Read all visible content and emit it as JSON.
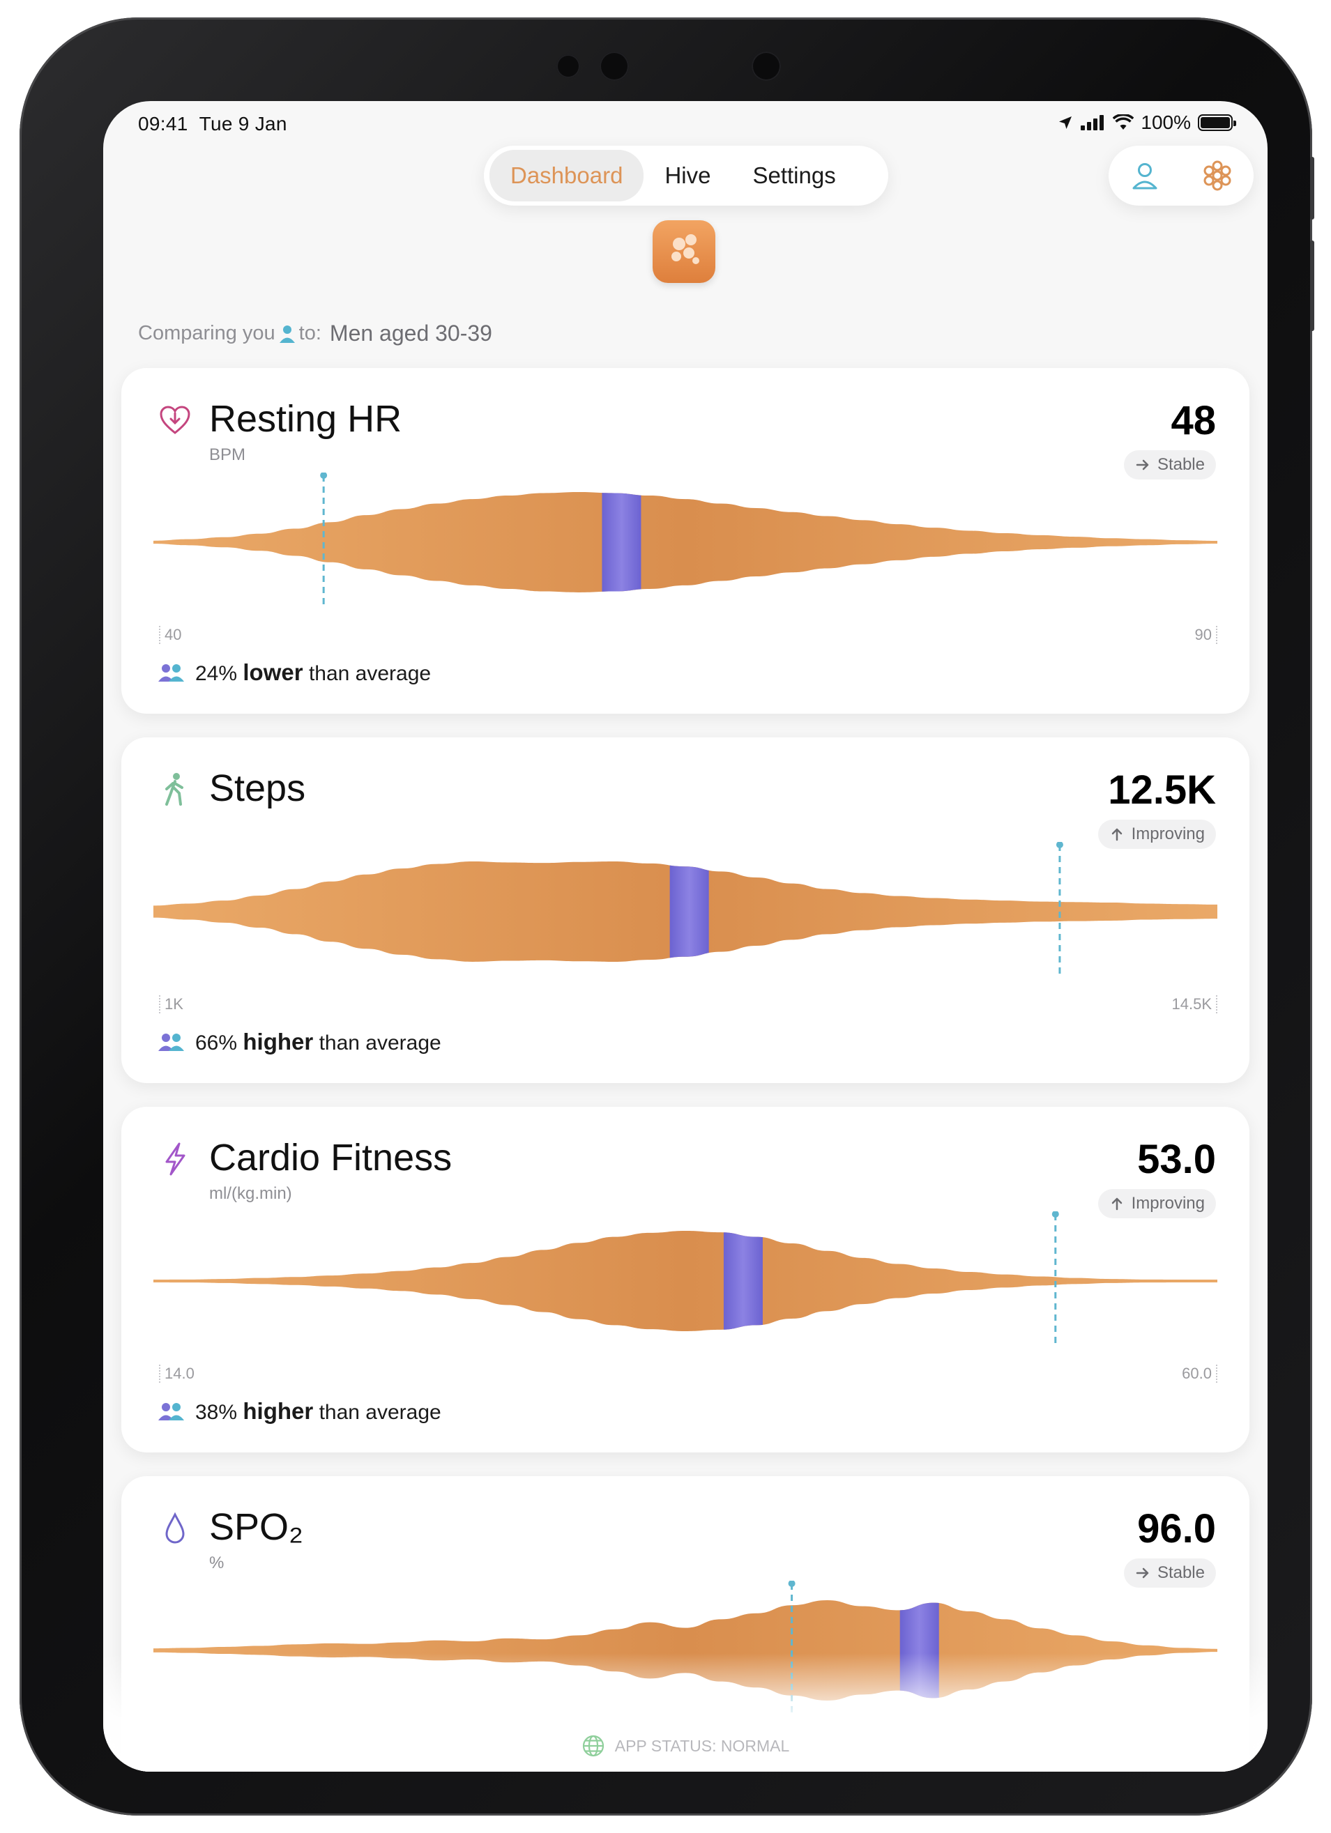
{
  "status_bar": {
    "time": "09:41",
    "date": "Tue 9 Jan",
    "battery": "100%"
  },
  "nav": {
    "tabs": [
      "Dashboard",
      "Hive",
      "Settings"
    ],
    "active": 0
  },
  "comparing": {
    "prefix": "Comparing you",
    "suffix": "to:",
    "group": "Men aged 30-39"
  },
  "colors": {
    "accent": "#dd9457",
    "violin": "#de9655",
    "median": "#7b72d6",
    "marker": "#5fb6cf"
  },
  "cards": [
    {
      "title": "Resting HR",
      "unit": "BPM",
      "value": "48",
      "trend": "Stable",
      "trend_dir": "right",
      "icon": "heart-down-icon",
      "axis_min": "40",
      "axis_max": "90",
      "range": [
        40,
        90
      ],
      "user_value": 48,
      "median_value": 62,
      "shape": [
        0.03,
        0.06,
        0.1,
        0.17,
        0.27,
        0.4,
        0.54,
        0.66,
        0.77,
        0.86,
        0.93,
        0.98,
        1.0,
        0.98,
        0.93,
        0.86,
        0.77,
        0.68,
        0.6,
        0.52,
        0.44,
        0.36,
        0.29,
        0.23,
        0.18,
        0.14,
        0.11,
        0.08,
        0.06,
        0.04,
        0.02
      ],
      "compare_pct": "24%",
      "compare_word": "lower",
      "compare_tail": "than average"
    },
    {
      "title": "Steps",
      "unit": "",
      "value": "12.5K",
      "trend": "Improving",
      "trend_dir": "up",
      "icon": "walking-icon",
      "axis_min": "1K",
      "axis_max": "14.5K",
      "range": [
        1000,
        14500
      ],
      "user_value": 12500,
      "median_value": 7800,
      "shape": [
        0.12,
        0.16,
        0.22,
        0.32,
        0.45,
        0.6,
        0.74,
        0.86,
        0.95,
        1.0,
        0.98,
        0.97,
        0.99,
        1.0,
        0.96,
        0.9,
        0.8,
        0.68,
        0.56,
        0.45,
        0.37,
        0.31,
        0.27,
        0.24,
        0.22,
        0.2,
        0.19,
        0.18,
        0.16,
        0.15,
        0.14
      ],
      "compare_pct": "66%",
      "compare_word": "higher",
      "compare_tail": "than average"
    },
    {
      "title": "Cardio Fitness",
      "unit": "ml/(kg.min)",
      "value": "53.0",
      "trend": "Improving",
      "trend_dir": "up",
      "icon": "lightning-icon",
      "axis_min": "14.0",
      "axis_max": "60.0",
      "range": [
        14,
        60
      ],
      "user_value": 53,
      "median_value": 39.5,
      "shape": [
        0.02,
        0.03,
        0.04,
        0.06,
        0.08,
        0.11,
        0.15,
        0.2,
        0.27,
        0.36,
        0.48,
        0.62,
        0.76,
        0.88,
        0.96,
        1.0,
        0.97,
        0.88,
        0.75,
        0.6,
        0.46,
        0.34,
        0.25,
        0.18,
        0.13,
        0.09,
        0.06,
        0.04,
        0.03,
        0.02,
        0.01
      ],
      "compare_pct": "38%",
      "compare_word": "higher",
      "compare_tail": "than average"
    },
    {
      "title": "SPO₂",
      "unit": "%",
      "value": "96.0",
      "trend": "Stable",
      "trend_dir": "right",
      "icon": "droplet-icon",
      "axis_min": "",
      "axis_max": "",
      "range": [
        90,
        100
      ],
      "user_value": 96,
      "median_value": 97.2,
      "shape": [
        0.04,
        0.05,
        0.07,
        0.09,
        0.12,
        0.14,
        0.13,
        0.16,
        0.2,
        0.18,
        0.24,
        0.22,
        0.3,
        0.42,
        0.56,
        0.45,
        0.62,
        0.74,
        0.9,
        1.0,
        0.88,
        0.8,
        0.95,
        0.78,
        0.62,
        0.44,
        0.3,
        0.18,
        0.1,
        0.05,
        0.03
      ],
      "compare_pct": "",
      "compare_word": "",
      "compare_tail": ""
    }
  ],
  "app_status": "APP STATUS: NORMAL"
}
